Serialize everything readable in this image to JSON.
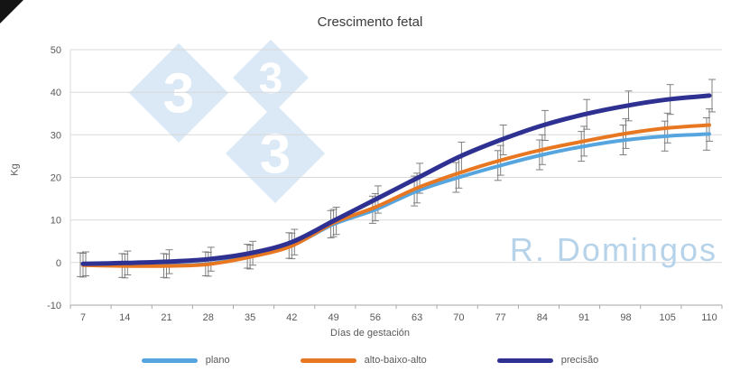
{
  "chart_data": {
    "type": "line",
    "title": "Crescimento fetal",
    "xlabel": "Días de gestación",
    "ylabel": "Kg",
    "x": [
      7,
      14,
      21,
      28,
      35,
      42,
      49,
      56,
      63,
      70,
      77,
      84,
      91,
      98,
      105,
      110
    ],
    "ylim": [
      -10,
      50
    ],
    "yticks": [
      -10,
      0,
      10,
      20,
      30,
      40,
      50
    ],
    "grid": true,
    "legend_position": "bottom",
    "error_bars": true,
    "series": [
      {
        "name": "plano",
        "color": "#56A5DE",
        "values": [
          -0.5,
          -0.7,
          -0.7,
          -0.3,
          1.5,
          4.0,
          9.0,
          12.4,
          16.8,
          20.0,
          22.8,
          25.3,
          27.3,
          28.8,
          29.7,
          30.2
        ],
        "errors": [
          2.8,
          2.8,
          2.8,
          2.8,
          2.8,
          3.0,
          3.2,
          3.2,
          3.5,
          3.5,
          3.5,
          3.5,
          3.5,
          3.5,
          3.5,
          3.8
        ]
      },
      {
        "name": "alto-baixo-alto",
        "color": "#E87722",
        "values": [
          -0.6,
          -0.8,
          -0.8,
          -0.4,
          1.3,
          3.9,
          9.3,
          13.0,
          17.5,
          21.0,
          24.0,
          26.5,
          28.5,
          30.3,
          31.6,
          32.3
        ],
        "errors": [
          2.8,
          2.8,
          2.8,
          2.8,
          2.8,
          3.0,
          3.2,
          3.2,
          3.5,
          3.5,
          3.5,
          3.5,
          3.5,
          3.5,
          3.5,
          3.8
        ]
      },
      {
        "name": "precisão",
        "color": "#2E3192",
        "values": [
          -0.3,
          -0.1,
          0.2,
          0.8,
          2.2,
          4.8,
          9.8,
          14.8,
          19.8,
          24.8,
          28.8,
          32.2,
          34.8,
          36.8,
          38.3,
          39.2
        ],
        "errors": [
          2.8,
          2.8,
          2.8,
          2.8,
          2.8,
          3.0,
          3.2,
          3.2,
          3.5,
          3.5,
          3.5,
          3.5,
          3.5,
          3.5,
          3.5,
          3.8
        ]
      }
    ],
    "watermark_text": "R. Domingos",
    "watermark_color": "#B7D3EA",
    "logo_digit": "3",
    "colors": {
      "grid": "#D9D9D9",
      "axis": "#A6A6A6",
      "text": "#595959",
      "error": "#7F7F7F",
      "logo": "#DBE8F5"
    }
  }
}
